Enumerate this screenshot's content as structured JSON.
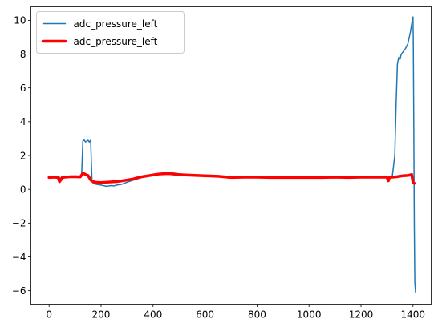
{
  "chart_data": {
    "type": "line",
    "title": "",
    "xlabel": "",
    "ylabel": "",
    "xlim": [
      -70,
      1470
    ],
    "ylim": [
      -6.8,
      10.8
    ],
    "xticks": [
      0,
      200,
      400,
      600,
      800,
      1000,
      1200,
      1400
    ],
    "yticks": [
      -6,
      -4,
      -2,
      0,
      2,
      4,
      6,
      8,
      10
    ],
    "grid": false,
    "legend_position": "upper-left",
    "series": [
      {
        "name": "adc_pressure_left",
        "color": "#1f77b4",
        "line_width": "thin",
        "x": [
          0,
          20,
          40,
          45,
          60,
          80,
          100,
          125,
          130,
          135,
          140,
          150,
          155,
          160,
          165,
          170,
          180,
          200,
          220,
          240,
          250,
          260,
          280,
          300,
          320,
          340,
          360,
          380,
          400,
          420,
          440,
          460,
          480,
          500,
          550,
          600,
          650,
          700,
          750,
          800,
          850,
          900,
          950,
          1000,
          1050,
          1100,
          1150,
          1200,
          1250,
          1300,
          1320,
          1330,
          1335,
          1340,
          1345,
          1350,
          1355,
          1360,
          1370,
          1380,
          1390,
          1395,
          1400,
          1401,
          1403,
          1405,
          1407,
          1410
        ],
        "y": [
          0.7,
          0.7,
          0.72,
          0.55,
          0.7,
          0.72,
          0.75,
          0.75,
          2.85,
          2.92,
          2.8,
          2.9,
          2.8,
          2.9,
          0.5,
          0.35,
          0.3,
          0.25,
          0.18,
          0.22,
          0.2,
          0.25,
          0.3,
          0.42,
          0.52,
          0.62,
          0.72,
          0.8,
          0.88,
          0.93,
          0.97,
          1.0,
          0.96,
          0.92,
          0.85,
          0.8,
          0.77,
          0.7,
          0.7,
          0.72,
          0.7,
          0.7,
          0.7,
          0.68,
          0.7,
          0.7,
          0.7,
          0.7,
          0.7,
          0.7,
          0.72,
          2.0,
          5.0,
          7.4,
          7.8,
          7.7,
          8.0,
          8.1,
          8.3,
          8.6,
          9.3,
          9.8,
          10.2,
          9.0,
          4.0,
          -2.0,
          -5.5,
          -6.1
        ]
      },
      {
        "name": "adc_pressure_left",
        "color": "#ff0000",
        "line_width": "thick",
        "x": [
          0,
          20,
          35,
          40,
          45,
          50,
          60,
          80,
          100,
          120,
          130,
          140,
          150,
          160,
          170,
          180,
          200,
          220,
          240,
          260,
          280,
          300,
          320,
          340,
          360,
          380,
          400,
          420,
          440,
          460,
          480,
          500,
          550,
          600,
          650,
          700,
          750,
          800,
          850,
          900,
          950,
          1000,
          1050,
          1100,
          1150,
          1200,
          1250,
          1300,
          1305,
          1310,
          1320,
          1340,
          1360,
          1380,
          1390,
          1395,
          1400,
          1405
        ],
        "y": [
          0.7,
          0.72,
          0.7,
          0.45,
          0.55,
          0.7,
          0.72,
          0.74,
          0.75,
          0.73,
          0.95,
          0.88,
          0.82,
          0.55,
          0.45,
          0.42,
          0.4,
          0.42,
          0.44,
          0.46,
          0.5,
          0.55,
          0.6,
          0.68,
          0.75,
          0.8,
          0.85,
          0.9,
          0.92,
          0.93,
          0.9,
          0.87,
          0.83,
          0.8,
          0.77,
          0.7,
          0.72,
          0.72,
          0.7,
          0.7,
          0.7,
          0.7,
          0.7,
          0.72,
          0.7,
          0.72,
          0.72,
          0.72,
          0.5,
          0.72,
          0.72,
          0.75,
          0.8,
          0.82,
          0.85,
          0.88,
          0.4,
          0.35
        ]
      }
    ]
  }
}
